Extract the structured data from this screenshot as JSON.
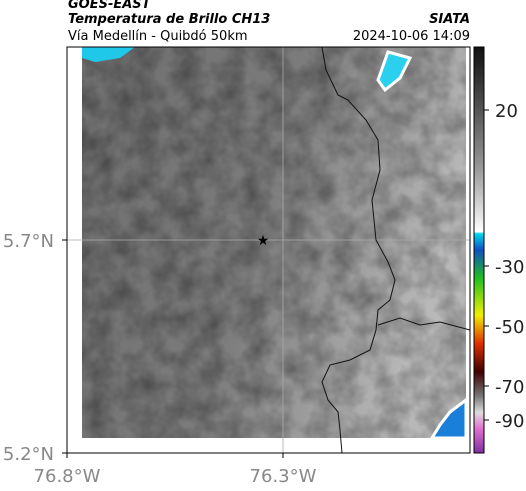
{
  "header": {
    "product": "GOES-EAST",
    "title": "Temperatura de Brillo CH13",
    "source": "SIATA",
    "region": "Vía Medellín - Quibdó 50km",
    "timestamp": "2024-10-06 14:09"
  },
  "map": {
    "lat_labels": [
      "5.7°N",
      "5.2°N"
    ],
    "lon_labels": [
      "76.8°W",
      "76.3°W"
    ]
  },
  "colorbar": {
    "ticks": [
      "20",
      "-30",
      "-50",
      "-70",
      "-90"
    ]
  }
}
